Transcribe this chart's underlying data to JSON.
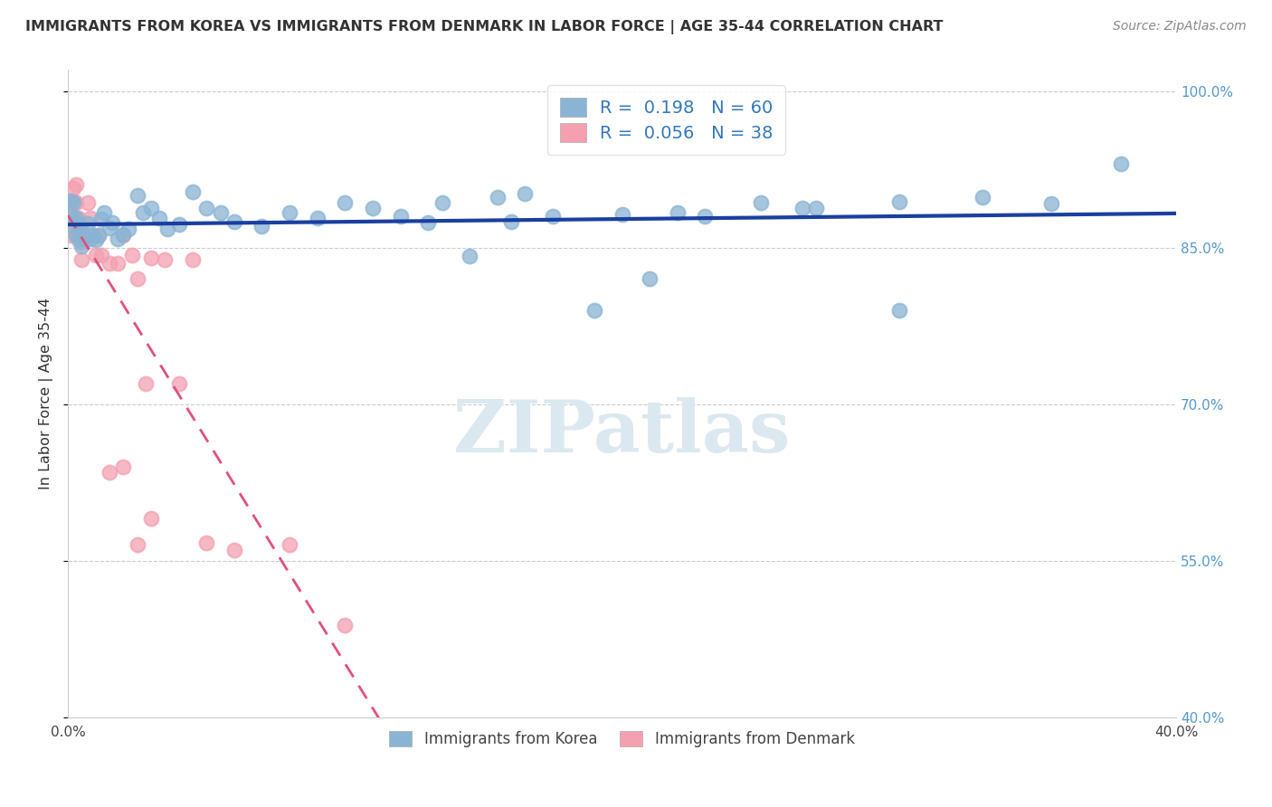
{
  "title": "IMMIGRANTS FROM KOREA VS IMMIGRANTS FROM DENMARK IN LABOR FORCE | AGE 35-44 CORRELATION CHART",
  "source": "Source: ZipAtlas.com",
  "ylabel": "In Labor Force | Age 35-44",
  "xlim": [
    0.0,
    0.4
  ],
  "ylim": [
    0.4,
    1.02
  ],
  "xticks": [
    0.0,
    0.05,
    0.1,
    0.15,
    0.2,
    0.25,
    0.3,
    0.35,
    0.4
  ],
  "xticklabels": [
    "0.0%",
    "",
    "",
    "",
    "",
    "",
    "",
    "",
    "40.0%"
  ],
  "yticks": [
    0.4,
    0.55,
    0.7,
    0.85,
    1.0
  ],
  "yticklabels": [
    "40.0%",
    "55.0%",
    "70.0%",
    "85.0%",
    "100.0%"
  ],
  "korea_color": "#8ab4d4",
  "denmark_color": "#f4a0b0",
  "korea_line_color": "#1a3fa0",
  "denmark_line_color": "#e0507a",
  "watermark": "ZIPatlas",
  "watermark_color": "#c8d8e8",
  "legend_korea_label": "R =  0.198   N = 60",
  "legend_denmark_label": "R =  0.056   N = 38",
  "legend_bottom_korea": "Immigrants from Korea",
  "legend_bottom_denmark": "Immigrants from Denmark",
  "korea_x": [
    0.001,
    0.001,
    0.002,
    0.002,
    0.003,
    0.003,
    0.004,
    0.004,
    0.005,
    0.005,
    0.006,
    0.006,
    0.007,
    0.008,
    0.009,
    0.01,
    0.011,
    0.012,
    0.013,
    0.015,
    0.016,
    0.018,
    0.02,
    0.022,
    0.025,
    0.027,
    0.03,
    0.033,
    0.036,
    0.04,
    0.045,
    0.05,
    0.055,
    0.06,
    0.07,
    0.08,
    0.09,
    0.1,
    0.11,
    0.12,
    0.13,
    0.145,
    0.16,
    0.175,
    0.19,
    0.21,
    0.23,
    0.25,
    0.27,
    0.3,
    0.135,
    0.155,
    0.165,
    0.2,
    0.22,
    0.265,
    0.3,
    0.33,
    0.355,
    0.38
  ],
  "korea_y": [
    0.895,
    0.88,
    0.893,
    0.87,
    0.878,
    0.862,
    0.872,
    0.857,
    0.866,
    0.851,
    0.862,
    0.858,
    0.873,
    0.858,
    0.862,
    0.857,
    0.862,
    0.877,
    0.883,
    0.869,
    0.874,
    0.858,
    0.863,
    0.868,
    0.9,
    0.883,
    0.888,
    0.878,
    0.868,
    0.872,
    0.903,
    0.888,
    0.883,
    0.875,
    0.87,
    0.883,
    0.878,
    0.893,
    0.888,
    0.88,
    0.874,
    0.842,
    0.875,
    0.88,
    0.79,
    0.82,
    0.88,
    0.893,
    0.888,
    0.79,
    0.893,
    0.898,
    0.902,
    0.882,
    0.883,
    0.888,
    0.894,
    0.898,
    0.892,
    0.93
  ],
  "denmark_x": [
    0.001,
    0.001,
    0.001,
    0.002,
    0.002,
    0.002,
    0.003,
    0.003,
    0.003,
    0.004,
    0.004,
    0.005,
    0.005,
    0.006,
    0.007,
    0.008,
    0.009,
    0.01,
    0.011,
    0.012,
    0.015,
    0.018,
    0.02,
    0.023,
    0.025,
    0.028,
    0.03,
    0.035,
    0.04,
    0.045,
    0.015,
    0.02,
    0.025,
    0.03,
    0.05,
    0.06,
    0.08,
    0.1
  ],
  "denmark_y": [
    0.893,
    0.878,
    0.862,
    0.907,
    0.895,
    0.88,
    0.91,
    0.893,
    0.862,
    0.878,
    0.862,
    0.855,
    0.838,
    0.858,
    0.893,
    0.878,
    0.862,
    0.843,
    0.862,
    0.843,
    0.835,
    0.835,
    0.862,
    0.843,
    0.82,
    0.72,
    0.84,
    0.838,
    0.72,
    0.838,
    0.635,
    0.64,
    0.565,
    0.59,
    0.567,
    0.56,
    0.565,
    0.488
  ]
}
